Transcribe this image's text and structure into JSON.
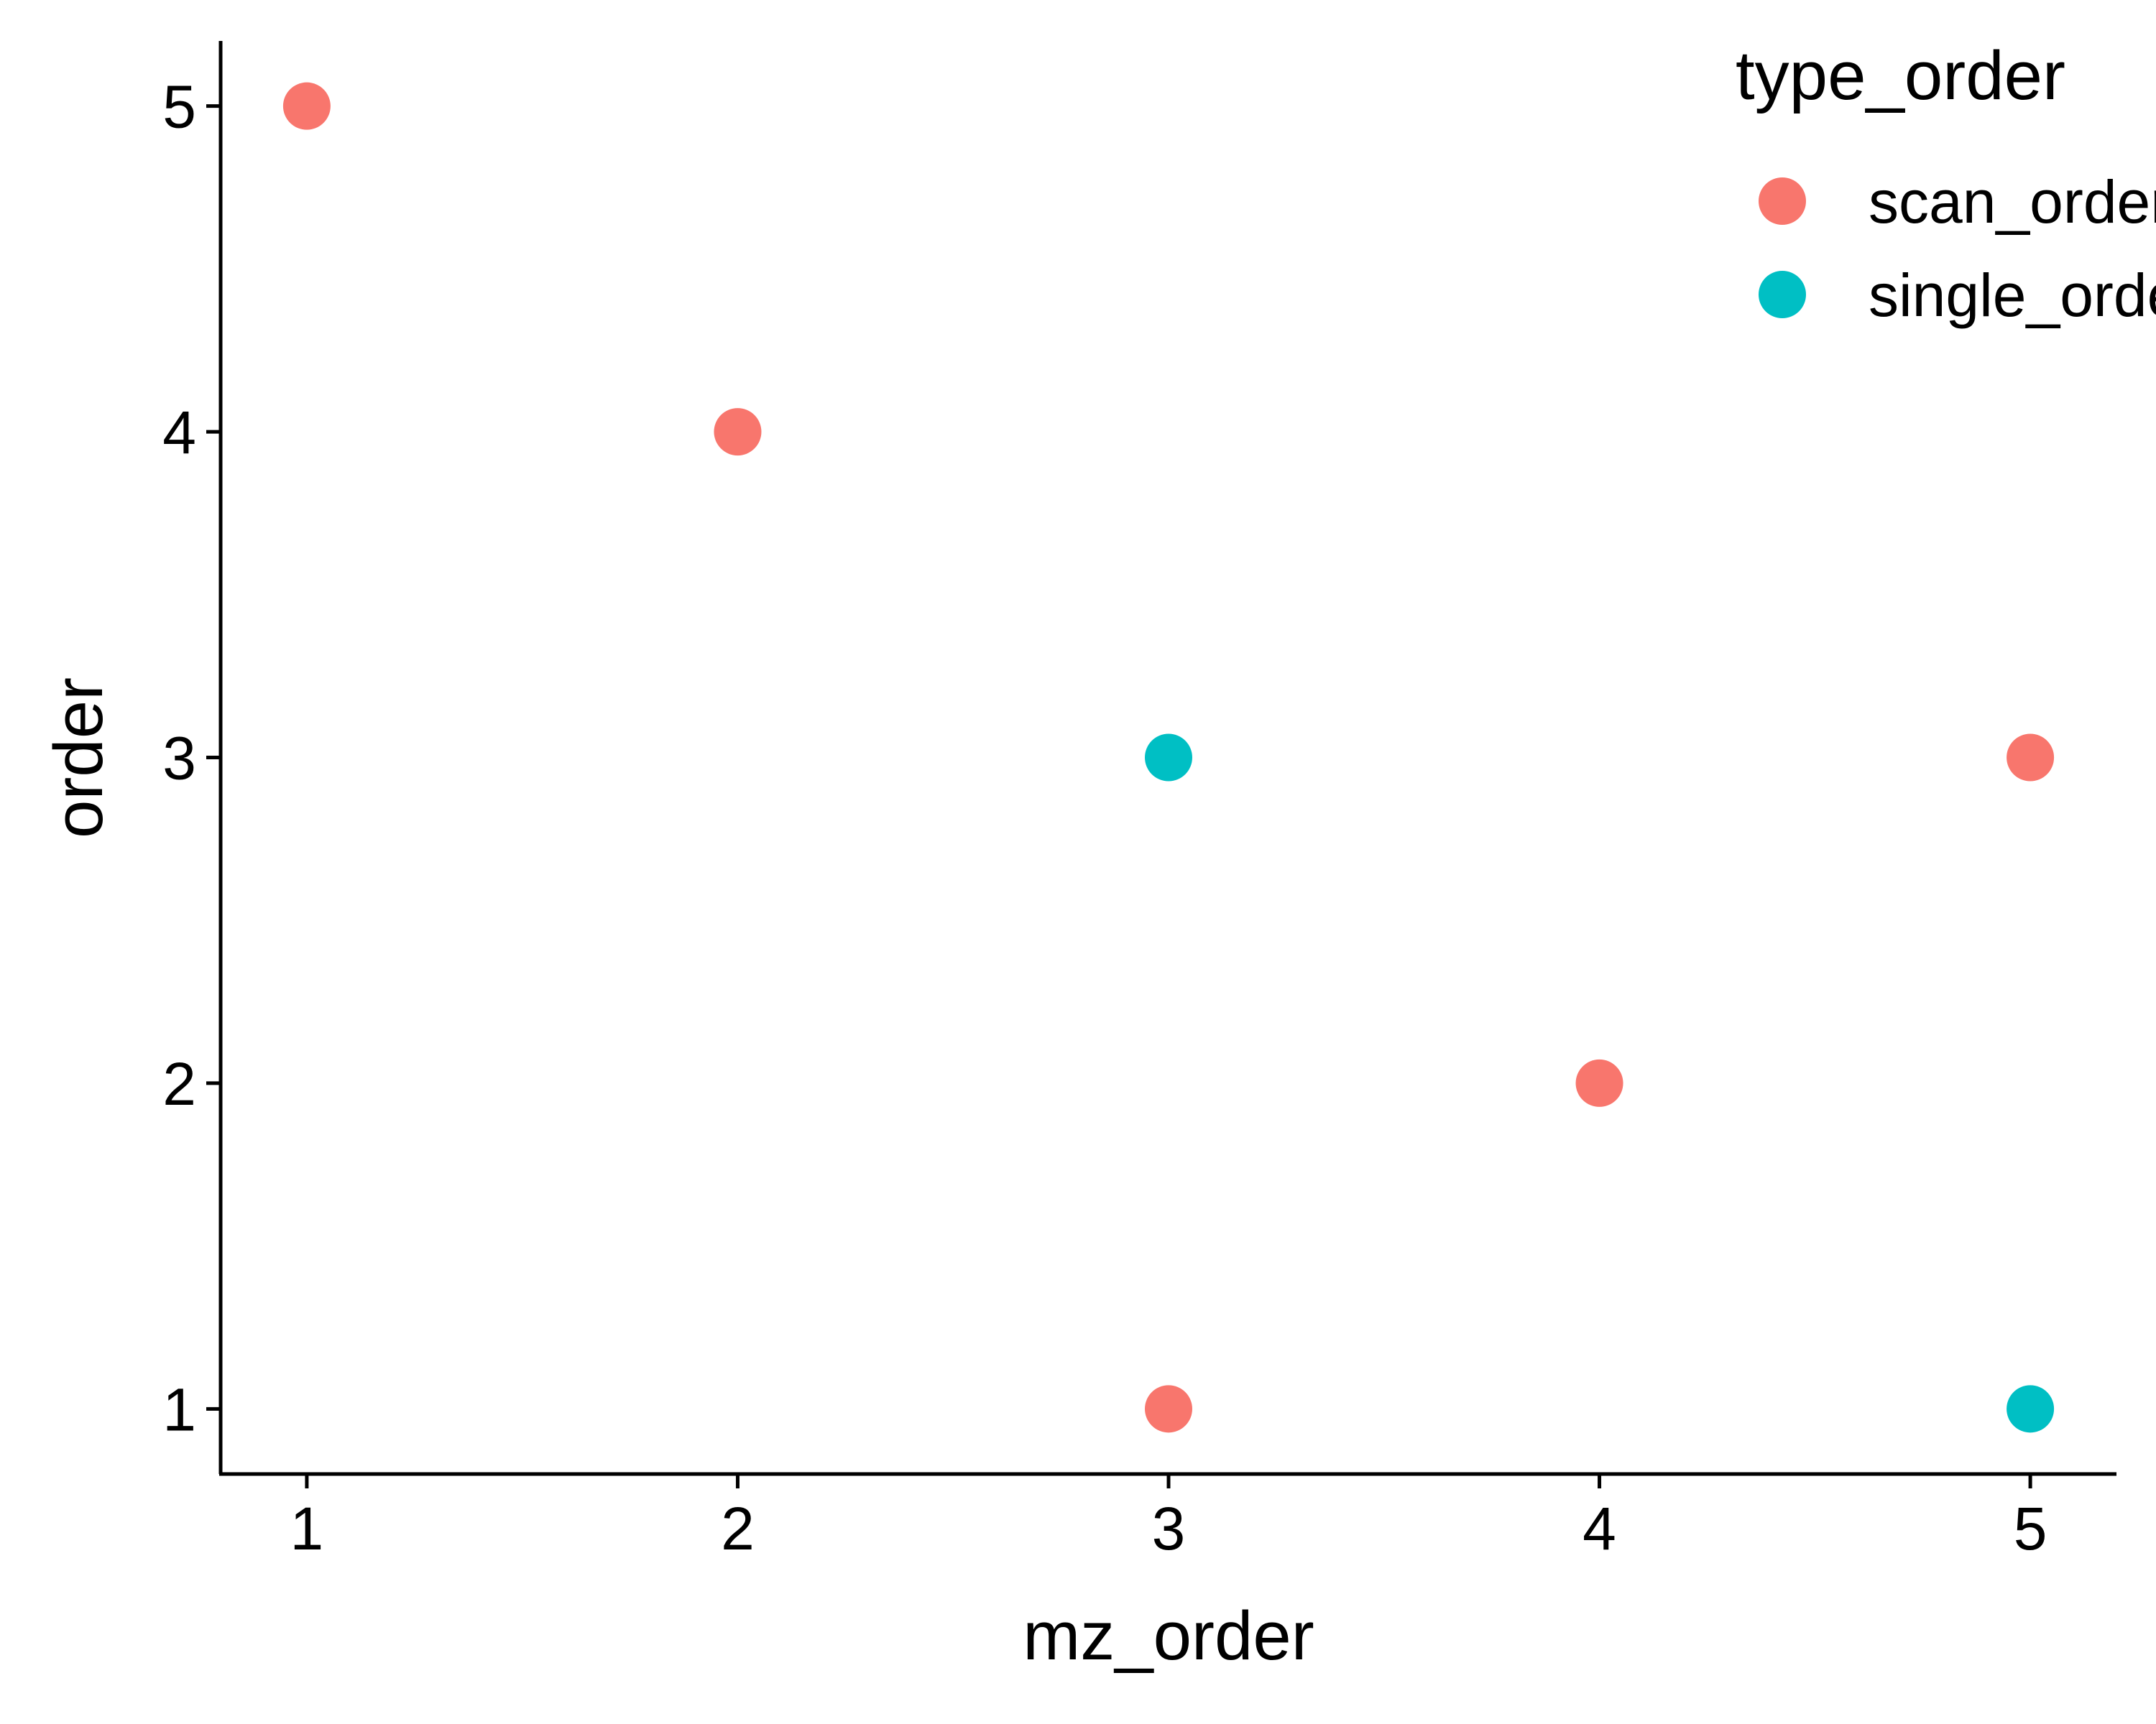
{
  "chart_data": {
    "type": "scatter",
    "title": "",
    "xlabel": "mz_order",
    "ylabel": "order",
    "xlim": [
      0.8,
      5.2
    ],
    "ylim": [
      0.8,
      5.2
    ],
    "xticks": [
      "1",
      "2",
      "3",
      "4",
      "5"
    ],
    "yticks": [
      "1",
      "2",
      "3",
      "4",
      "5"
    ],
    "grid": false,
    "legend": {
      "title": "type_order",
      "placement": "right",
      "entries": [
        {
          "label": "scan_order",
          "color": "#F8766D"
        },
        {
          "label": "single_order",
          "color": "#00BFC4"
        }
      ]
    },
    "series": [
      {
        "name": "scan_order",
        "color": "#F8766D",
        "points": [
          {
            "x": 1,
            "y": 5
          },
          {
            "x": 2,
            "y": 4
          },
          {
            "x": 3,
            "y": 1
          },
          {
            "x": 4,
            "y": 2
          },
          {
            "x": 5,
            "y": 3
          }
        ]
      },
      {
        "name": "single_order",
        "color": "#00BFC4",
        "points": [
          {
            "x": 3,
            "y": 3
          },
          {
            "x": 5,
            "y": 1
          }
        ]
      }
    ]
  }
}
